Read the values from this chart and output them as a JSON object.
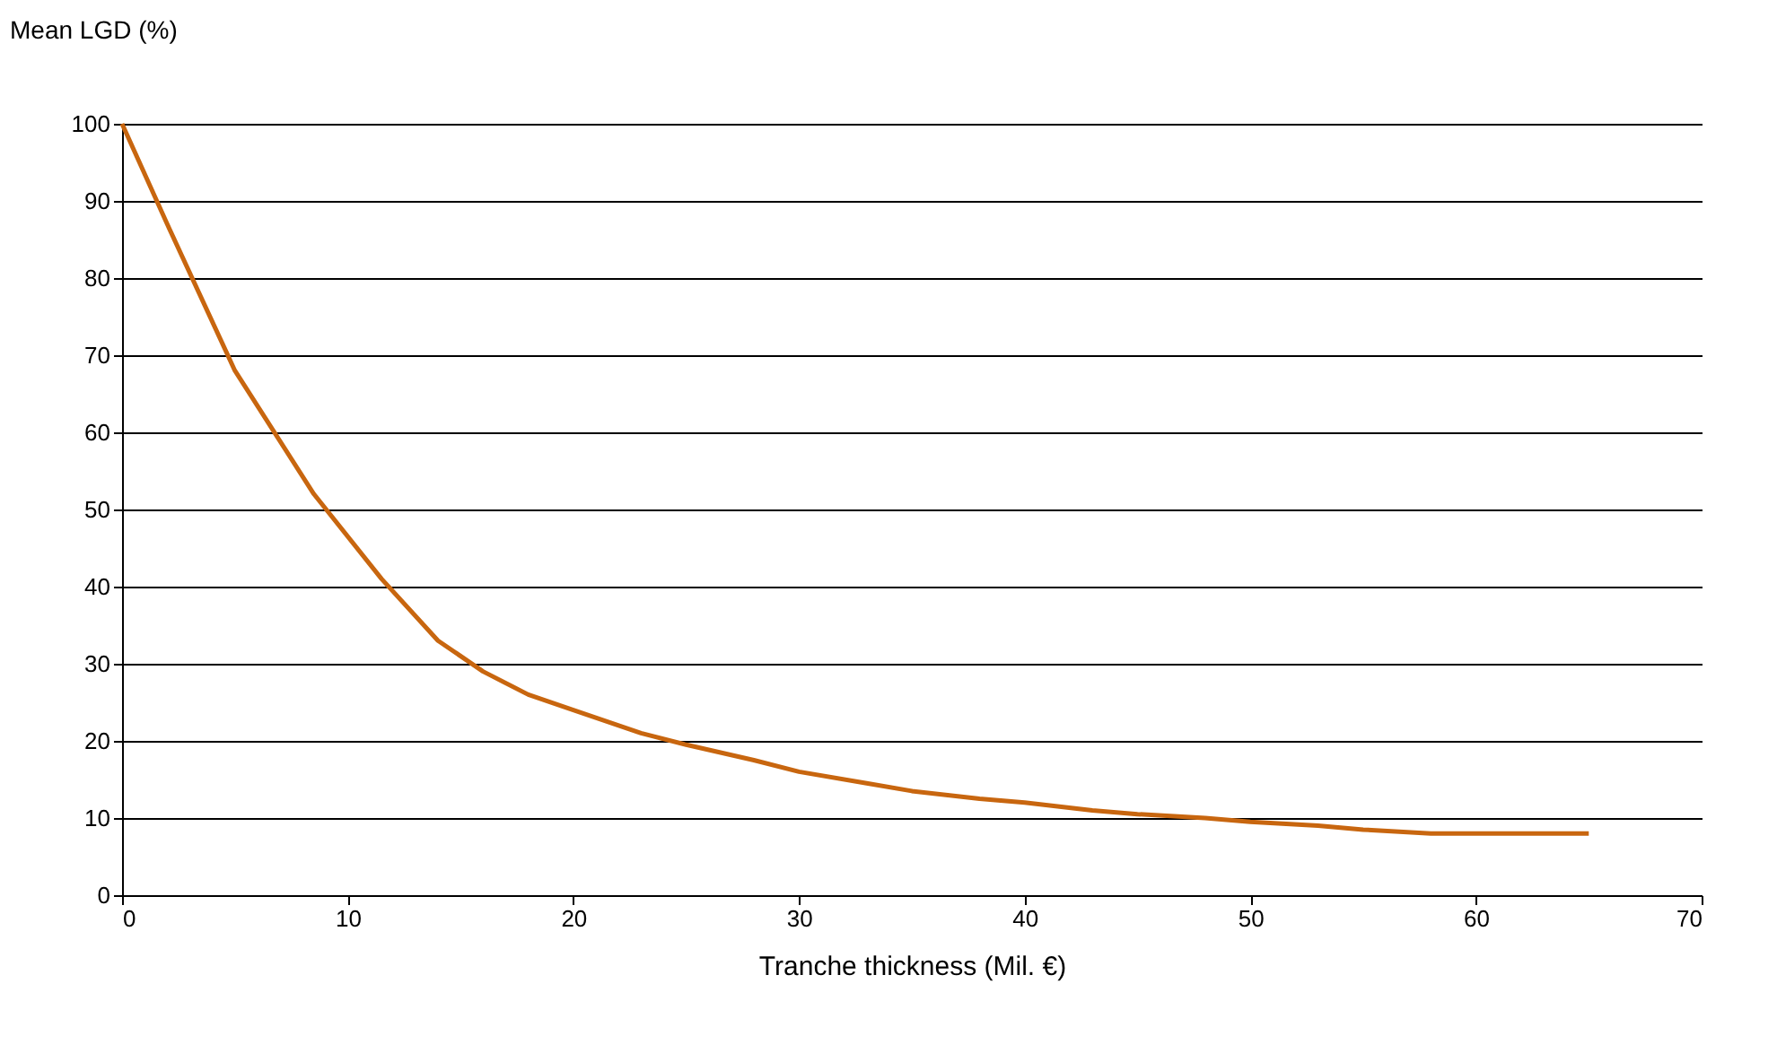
{
  "chart_data": {
    "type": "line",
    "ylabel": "Mean LGD (%)",
    "xlabel": "Tranche thickness (Mil. €)",
    "x": [
      0,
      2,
      5,
      8.5,
      11.5,
      14,
      16,
      18,
      20,
      23,
      25,
      28,
      30,
      33,
      35,
      38,
      40,
      43,
      45,
      48,
      50,
      53,
      55,
      58,
      60,
      63,
      65
    ],
    "series": [
      {
        "color": "#c8660f",
        "values": [
          100,
          87,
          68,
          52,
          41,
          33,
          29,
          26,
          24,
          21,
          19.5,
          17.5,
          16,
          14.5,
          13.5,
          12.5,
          12,
          11,
          10.5,
          10,
          9.5,
          9,
          8.5,
          8,
          8,
          8,
          8
        ]
      }
    ],
    "xlim": [
      0,
      70
    ],
    "xticks": [
      0,
      10,
      20,
      30,
      40,
      50,
      60,
      70
    ],
    "ylim": [
      0,
      100
    ],
    "yticks": [
      0,
      10,
      20,
      30,
      40,
      50,
      60,
      70,
      80,
      90,
      100
    ],
    "grid": "y",
    "marker": "none",
    "line_style": "solid"
  }
}
